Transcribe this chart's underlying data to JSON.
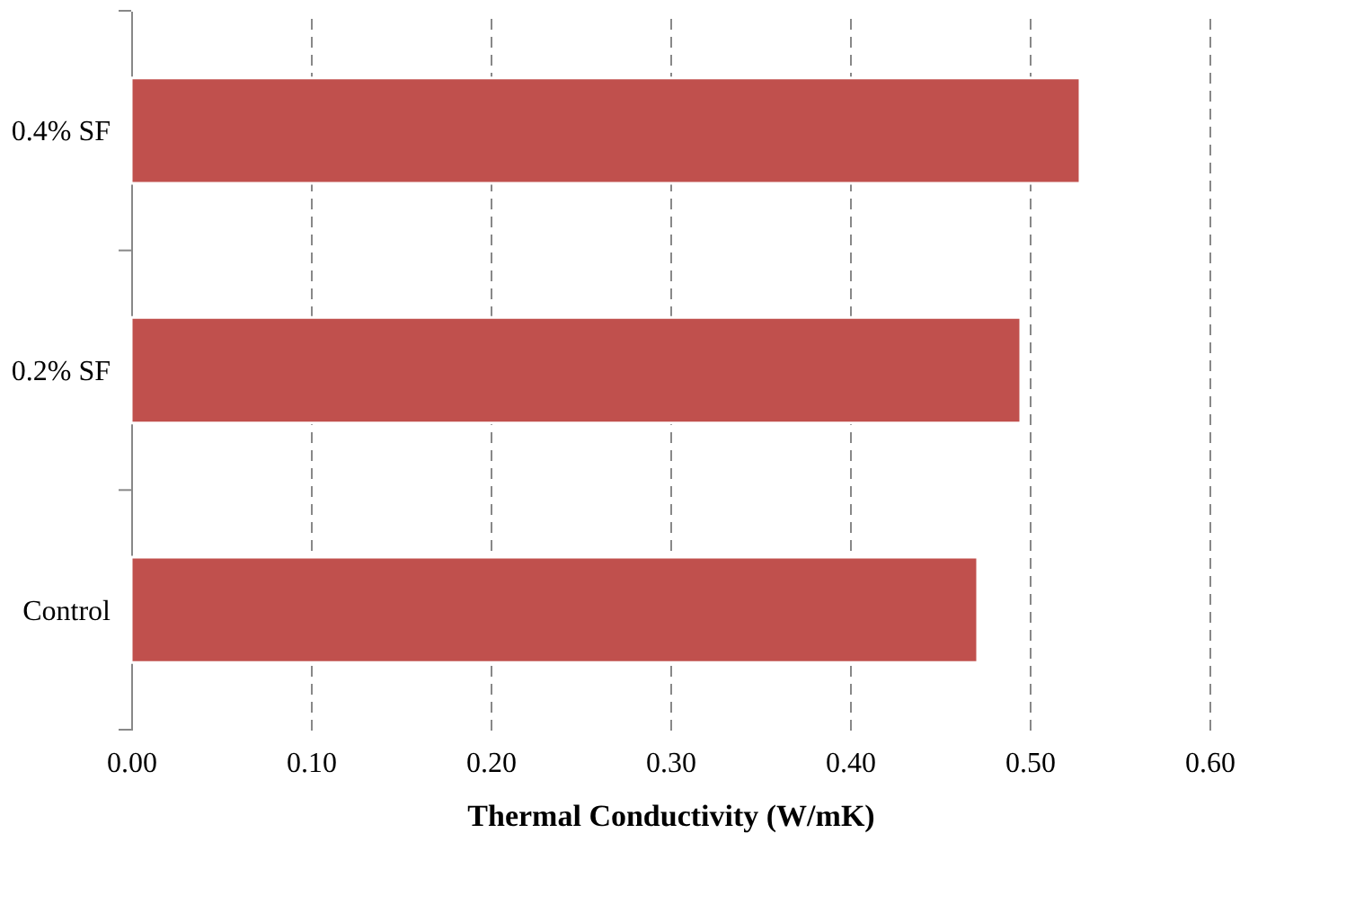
{
  "chart_data": {
    "type": "bar",
    "orientation": "horizontal",
    "xlabel": "Thermal Conductivity (W/mK)",
    "categories": [
      "0.4% SF",
      "0.2% SF",
      "Control"
    ],
    "values": [
      0.528,
      0.495,
      0.471
    ],
    "color": "#c0504d",
    "xlim": [
      0,
      0.6
    ],
    "xticks": [
      {
        "value": 0,
        "label": "0.00"
      },
      {
        "value": 0.1,
        "label": "0.10"
      },
      {
        "value": 0.2,
        "label": "0.20"
      },
      {
        "value": 0.3,
        "label": "0.30"
      },
      {
        "value": 0.4,
        "label": "0.40"
      },
      {
        "value": 0.5,
        "label": "0.50"
      },
      {
        "value": 0.6,
        "label": "0.60"
      }
    ],
    "grid": "x"
  }
}
